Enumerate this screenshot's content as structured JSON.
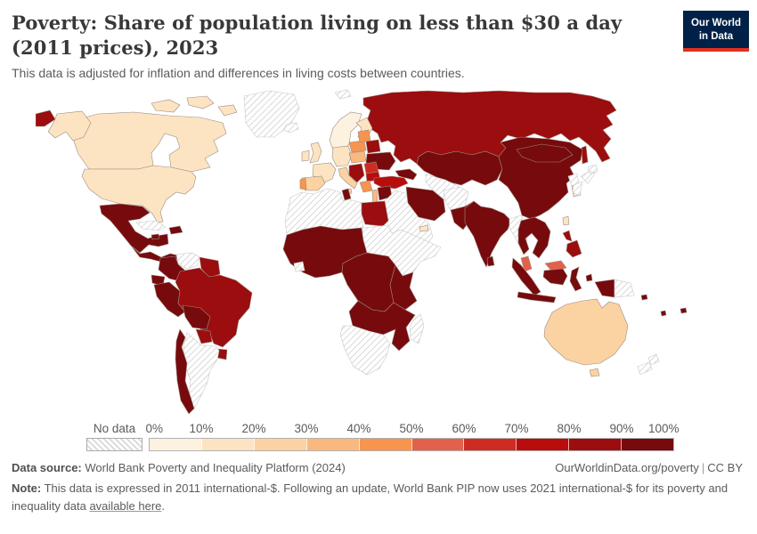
{
  "header": {
    "title": "Poverty: Share of population living on less than $30 a day (2011 prices), 2023",
    "subtitle": "This data is adjusted for inflation and differences in living costs between countries.",
    "logo": {
      "line1": "Our World",
      "line2": "in Data",
      "bg_color": "#002147",
      "accent_color": "#e0301f"
    }
  },
  "legend": {
    "no_data_label": "No data",
    "ticks": [
      "0%",
      "10%",
      "20%",
      "30%",
      "40%",
      "50%",
      "60%",
      "70%",
      "80%",
      "90%",
      "100%"
    ],
    "bins": [
      {
        "range": "0-10%",
        "color": "#fdf1e0"
      },
      {
        "range": "10-20%",
        "color": "#fce4c2"
      },
      {
        "range": "20-30%",
        "color": "#fbd2a1"
      },
      {
        "range": "30-40%",
        "color": "#f9b97e"
      },
      {
        "range": "40-50%",
        "color": "#f7944e"
      },
      {
        "range": "50-60%",
        "color": "#e2614b"
      },
      {
        "range": "60-70%",
        "color": "#ce2c21"
      },
      {
        "range": "70-80%",
        "color": "#b90c0c"
      },
      {
        "range": "80-90%",
        "color": "#9b0d0e"
      },
      {
        "range": "90-100%",
        "color": "#770a0d"
      }
    ]
  },
  "footer": {
    "datasource_label": "Data source:",
    "datasource": "World Bank Poverty and Inequality Platform (2024)",
    "link": "OurWorldinData.org/poverty",
    "separator": "|",
    "license": "CC BY",
    "note_label": "Note:",
    "note_text": "This data is expressed in 2011 international-$. Following an update, World Bank PIP now uses 2021 international-$ for its poverty and inequality data ",
    "note_link": "available here",
    "note_suffix": "."
  },
  "chart_data": {
    "type": "choropleth",
    "title": "Poverty: Share of population living on less than $30 a day (2011 prices)",
    "year": "2023",
    "unit": "share of population (%), binned in 10-percentage-point intervals",
    "no_data_style": "diagonal-hatch",
    "regions": {
      "greenland": "No data",
      "iceland": "No data",
      "svalbard": "No data",
      "canada_arctic": "10-20%",
      "canada": "10-20%",
      "alaska": "10-20%",
      "usa": "10-20%",
      "russia_west_tip": "80-90%",
      "mexico": "90-100%",
      "central_america": "90-100%",
      "cuba": "No data",
      "jamaica": "90-100%",
      "hispaniola": "90-100%",
      "venezuela": "No data",
      "guyanas": "80-90%",
      "colombia": "90-100%",
      "ecuador": "90-100%",
      "peru": "90-100%",
      "brazil": "80-90%",
      "bolivia": "90-100%",
      "paraguay": "80-90%",
      "uruguay": "80-90%",
      "argentina": "No data",
      "chile": "90-100%",
      "norway_sweden": "0-10%",
      "finland": "10-20%",
      "denmark": "0-10%",
      "uk": "10-20%",
      "ireland": "10-20%",
      "france": "10-20%",
      "germany_central": "10-20%",
      "spain": "20-30%",
      "portugal": "40-50%",
      "italy": "20-30%",
      "sicily": "20-30%",
      "poland": "40-50%",
      "czech_hungary": "30-40%",
      "baltics": "40-50%",
      "belarus": "80-90%",
      "ukraine": "90-100%",
      "romania": "60-70%",
      "bulgaria": "70-80%",
      "balkans": "80-90%",
      "greece": "40-50%",
      "russia": "80-90%",
      "sakhalin": "80-90%",
      "kazakhstan_central_asia": "90-100%",
      "turkmenistan_uzbekistan": "No data",
      "caucasus": "90-100%",
      "turkey": "70-80%",
      "levant": "30-40%",
      "syria": "90-100%",
      "arabia": "No data",
      "uae": "10-20%",
      "iran": "90-100%",
      "afghanistan": "No data",
      "pakistan": "90-100%",
      "india": "90-100%",
      "sri_lanka": "90-100%",
      "china": "90-100%",
      "mongolia": "90-100%",
      "north_korea": "No data",
      "south_korea": "10-20%",
      "japan": "No data",
      "taiwan": "10-20%",
      "myanmar": "No data",
      "indochina": "90-100%",
      "malaysia_peninsular": "50-60%",
      "malaysia_borneo": "50-60%",
      "sumatra": "90-100%",
      "java": "90-100%",
      "kalimantan": "90-100%",
      "sulawesi": "90-100%",
      "moluccas": "90-100%",
      "indonesia_papua": "90-100%",
      "papua_new_guinea": "No data",
      "philippines": "80-90%",
      "maghreb_libya": "No data",
      "tunisia": "90-100%",
      "egypt": "80-90%",
      "sudan_horn": "No data",
      "west_africa": "90-100%",
      "liberia": "No data",
      "central_africa": "90-100%",
      "east_africa": "90-100%",
      "southern_africa_dark": "90-100%",
      "southern_africa_nodata": "No data",
      "madagascar": "No data",
      "australia": "20-30%",
      "tasmania": "20-30%",
      "new_zealand": "No data",
      "fiji": "90-100%",
      "solomon": "90-100%",
      "vanuatu": "90-100%"
    }
  }
}
